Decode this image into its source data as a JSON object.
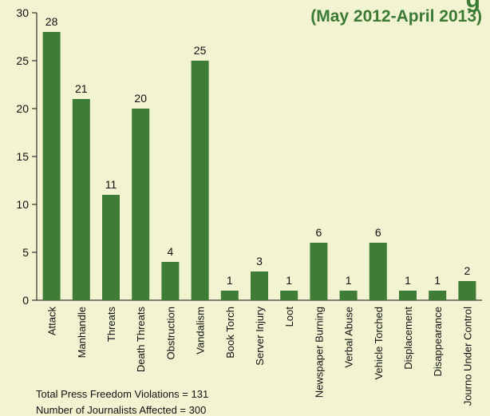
{
  "header": {
    "headline_fragment": "g",
    "subtitle": "(May 2012-April 2013)"
  },
  "notes": {
    "total": "Total Press Freedom Violations = 131",
    "journalists": "Number  of Journalists Affected = 300"
  },
  "colors": {
    "bar": "#3f7d37",
    "background": "#f1f3d1",
    "accent": "#3a7a34"
  },
  "chart_data": {
    "type": "bar",
    "title": "",
    "xlabel": "",
    "ylabel": "",
    "categories": [
      "Attack",
      "Manhandle",
      "Threats",
      "Death Threats",
      "Obstruction",
      "Vandalism",
      "Book Torch",
      "Server Injury",
      "Loot",
      "Newspaper Burning",
      "Verbal Abuse",
      "Vehicle Torched",
      "Displacement",
      "Disappearance",
      "Journo Under Control"
    ],
    "values": [
      28,
      21,
      11,
      20,
      4,
      25,
      1,
      3,
      1,
      6,
      1,
      6,
      1,
      1,
      2
    ],
    "ylim": [
      0,
      30
    ],
    "yticks": [
      0,
      5,
      10,
      15,
      20,
      25,
      30
    ],
    "grid": false,
    "data_labels": true
  }
}
